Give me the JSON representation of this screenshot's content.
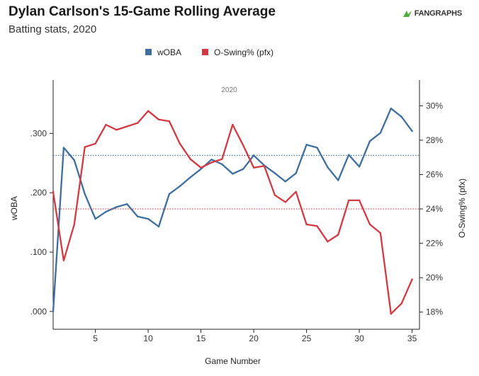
{
  "header": {
    "title": "Dylan Carlson's 15-Game Rolling Average",
    "subtitle": "Batting stats, 2020",
    "brand": "FANGRAPHS",
    "brand_colors": {
      "green": "#4fae3a",
      "text": "#333333"
    }
  },
  "chart_data": {
    "type": "line",
    "title": "Dylan Carlson's 15-Game Rolling Average",
    "subtitle": "Batting stats, 2020",
    "inner_label": "2020",
    "xlabel": "Game Number",
    "ylabel_left": "wOBA",
    "ylabel_right": "O-Swing% (pfx)",
    "xlim": [
      1,
      35.7
    ],
    "ylim_left": [
      -0.03,
      0.39
    ],
    "ylim_right": [
      17.0,
      31.5
    ],
    "x_ticks": [
      5,
      10,
      15,
      20,
      25,
      30,
      35
    ],
    "x_tick_labels": [
      "5",
      "10",
      "15",
      "20",
      "25",
      "30",
      "35"
    ],
    "y_left_ticks": [
      0,
      0.1,
      0.2,
      0.3
    ],
    "y_left_tick_labels": [
      ".000",
      ".100",
      ".200",
      ".300"
    ],
    "y_right_ticks": [
      18,
      20,
      22,
      24,
      26,
      28,
      30
    ],
    "y_right_tick_labels": [
      "18%",
      "20%",
      "22%",
      "24%",
      "26%",
      "28%",
      "30%"
    ],
    "legend": [
      "wOBA",
      "O-Swing% (pfx)"
    ],
    "legend_position": "top-center",
    "grid": false,
    "x": [
      1,
      2,
      3,
      4,
      5,
      6,
      7,
      8,
      9,
      10,
      11,
      12,
      13,
      14,
      15,
      16,
      17,
      18,
      19,
      20,
      21,
      22,
      23,
      24,
      25,
      26,
      27,
      28,
      29,
      30,
      31,
      32,
      33,
      34,
      35
    ],
    "series": [
      {
        "name": "wOBA",
        "axis": "left",
        "color": "#3d6e9e",
        "values": [
          0.0,
          0.276,
          0.255,
          0.198,
          0.156,
          0.168,
          0.176,
          0.181,
          0.16,
          0.156,
          0.143,
          0.198,
          0.211,
          0.226,
          0.24,
          0.256,
          0.248,
          0.232,
          0.24,
          0.263,
          0.246,
          0.233,
          0.219,
          0.233,
          0.281,
          0.276,
          0.243,
          0.221,
          0.264,
          0.244,
          0.287,
          0.301,
          0.342,
          0.328,
          0.304
        ],
        "reference_line": 0.263
      },
      {
        "name": "O-Swing% (pfx)",
        "axis": "right",
        "color": "#d13a43",
        "values": [
          25.0,
          21.0,
          23.1,
          27.6,
          27.8,
          28.9,
          28.6,
          28.8,
          29.0,
          29.7,
          29.2,
          29.1,
          27.8,
          26.9,
          26.4,
          26.7,
          26.9,
          28.9,
          27.7,
          26.4,
          26.5,
          24.8,
          24.4,
          25.0,
          23.1,
          23.0,
          22.1,
          22.5,
          24.5,
          24.5,
          23.1,
          22.6,
          17.9,
          18.5,
          19.9
        ],
        "reference_line": 24.0
      }
    ]
  }
}
